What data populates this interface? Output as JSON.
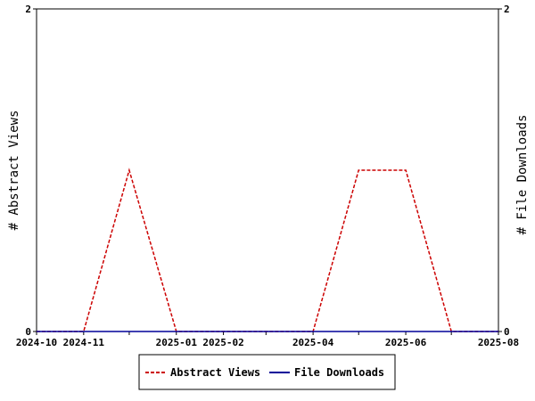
{
  "chart_data": {
    "type": "line",
    "title": "",
    "xlabel": "",
    "ylabel_left": "# Abstract Views",
    "ylabel_right": "# File Downloads",
    "x_ticks": [
      "2024-10",
      "2024-11",
      "2025-01",
      "2025-02",
      "2025-04",
      "2025-06",
      "2025-08"
    ],
    "xlim": [
      "2024-10-01",
      "2025-08-01"
    ],
    "ylim_left": [
      0,
      2
    ],
    "ylim_right": [
      0,
      2
    ],
    "y_ticks_left": [
      "0",
      "2"
    ],
    "y_ticks_right": [
      "0",
      "2"
    ],
    "grid": false,
    "legend_position": "bottom-center",
    "series": [
      {
        "name": "Abstract Views",
        "axis": "left",
        "color": "#cc0000",
        "style": "dashed",
        "points": [
          [
            "2024-10-01",
            0
          ],
          [
            "2024-11-01",
            0
          ],
          [
            "2024-12-01",
            1
          ],
          [
            "2025-01-01",
            0
          ],
          [
            "2025-02-01",
            0
          ],
          [
            "2025-03-01",
            0
          ],
          [
            "2025-04-01",
            0
          ],
          [
            "2025-05-01",
            1
          ],
          [
            "2025-06-01",
            1
          ],
          [
            "2025-07-01",
            0
          ],
          [
            "2025-08-01",
            0
          ]
        ]
      },
      {
        "name": "File Downloads",
        "axis": "right",
        "color": "#000099",
        "style": "solid",
        "points": [
          [
            "2024-10-01",
            0
          ],
          [
            "2024-11-01",
            0
          ],
          [
            "2024-12-01",
            0
          ],
          [
            "2025-01-01",
            0
          ],
          [
            "2025-02-01",
            0
          ],
          [
            "2025-03-01",
            0
          ],
          [
            "2025-04-01",
            0
          ],
          [
            "2025-05-01",
            0
          ],
          [
            "2025-06-01",
            0
          ],
          [
            "2025-07-01",
            0
          ],
          [
            "2025-08-01",
            0
          ]
        ]
      }
    ]
  }
}
